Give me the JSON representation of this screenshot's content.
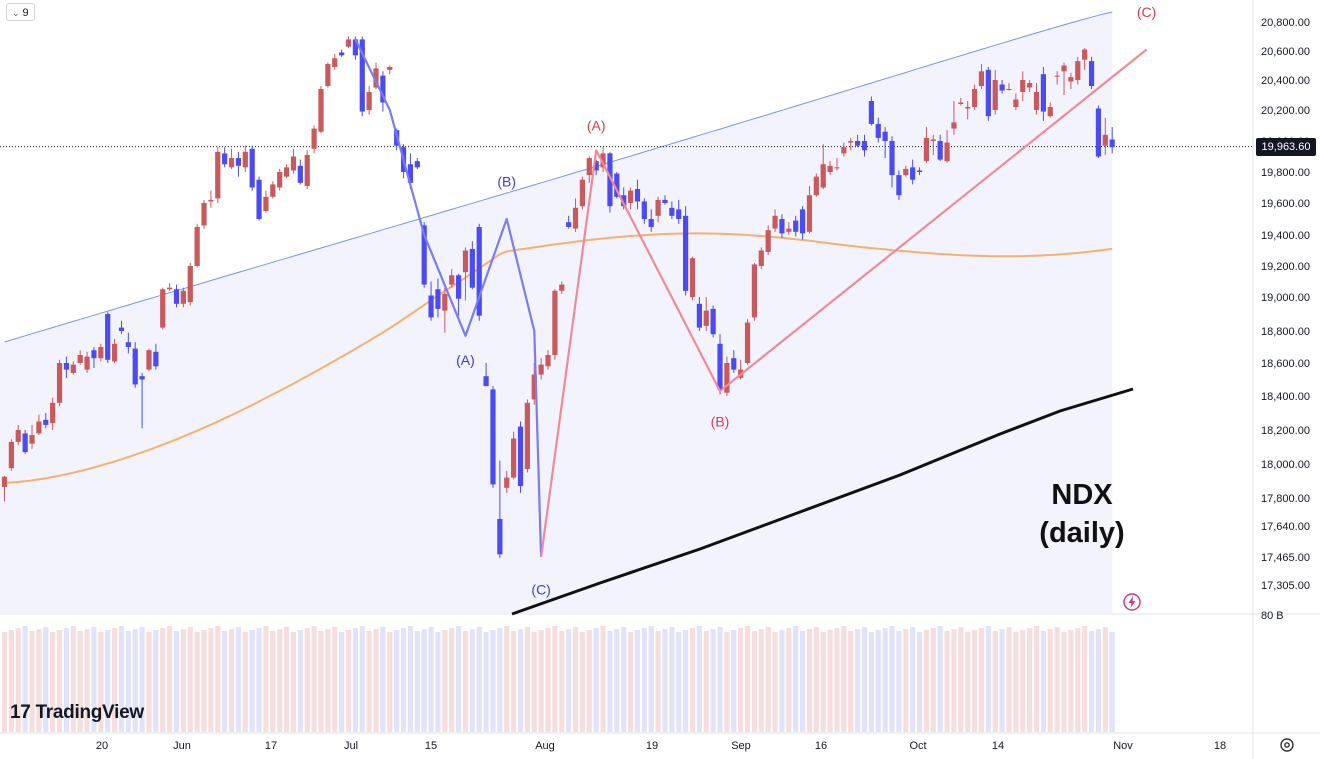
{
  "toolbar": {
    "interval_label": "9"
  },
  "price_tag": "19,963.60",
  "branding": {
    "logo_mark": "17",
    "logo_text": "TradingView"
  },
  "annotation": {
    "title_line1": "NDX",
    "title_line2": "(daily)"
  },
  "axis_extra_label": "80 B",
  "colors": {
    "up": "#c8595c",
    "down": "#4b4bef",
    "wave_blue": "#7b7bf2",
    "wave_red": "#f28a95",
    "ma_orange": "#f6b16e",
    "ma_black": "#111111",
    "band": "#7c93e6"
  },
  "chart_data": {
    "type": "candlestick",
    "title": "NDX (daily)",
    "y_ticks": [
      "20,800.00",
      "20,600.00",
      "20,400.00",
      "20,200.00",
      "20,000.00",
      "19,800.00",
      "19,600.00",
      "19,400.00",
      "19,200.00",
      "19,000.00",
      "18,800.00",
      "18,600.00",
      "18,400.00",
      "18,200.00",
      "18,000.00",
      "17,800.00",
      "17,640.00",
      "17,465.00",
      "17,305.00"
    ],
    "x_ticks": [
      "20",
      "Jun",
      "17",
      "Jul",
      "15",
      "Aug",
      "19",
      "Sep",
      "16",
      "Oct",
      "14",
      "Nov",
      "18"
    ],
    "last_price": 19963.6,
    "ylim": [
      17305,
      20800
    ],
    "candles": [
      [
        17865,
        17925,
        17780,
        17930
      ],
      [
        17975,
        18130,
        17960,
        18145
      ],
      [
        18130,
        18200,
        18110,
        18230
      ],
      [
        18180,
        18070,
        18060,
        18200
      ],
      [
        18120,
        18170,
        18090,
        18230
      ],
      [
        18180,
        18250,
        18170,
        18290
      ],
      [
        18260,
        18230,
        18210,
        18300
      ],
      [
        18240,
        18360,
        18200,
        18390
      ],
      [
        18360,
        18600,
        18340,
        18620
      ],
      [
        18600,
        18560,
        18510,
        18640
      ],
      [
        18540,
        18590,
        18530,
        18610
      ],
      [
        18600,
        18650,
        18590,
        18680
      ],
      [
        18560,
        18640,
        18540,
        18670
      ],
      [
        18680,
        18630,
        18570,
        18700
      ],
      [
        18630,
        18700,
        18610,
        18720
      ],
      [
        18900,
        18620,
        18600,
        18910
      ],
      [
        18610,
        18720,
        18600,
        18750
      ],
      [
        18820,
        18800,
        18780,
        18860
      ],
      [
        18730,
        18700,
        18660,
        18790
      ],
      [
        18690,
        18470,
        18450,
        18730
      ],
      [
        18520,
        18500,
        18210,
        18540
      ],
      [
        18560,
        18680,
        18550,
        18690
      ],
      [
        18670,
        18580,
        18560,
        18720
      ],
      [
        18820,
        19050,
        18810,
        19060
      ],
      [
        19050,
        19060,
        19040,
        19090
      ],
      [
        19050,
        18960,
        18940,
        19080
      ],
      [
        18960,
        19040,
        18940,
        19060
      ],
      [
        18970,
        19200,
        18950,
        19220
      ],
      [
        19200,
        19450,
        19190,
        19470
      ],
      [
        19460,
        19600,
        19440,
        19620
      ],
      [
        19610,
        19620,
        19570,
        19680
      ],
      [
        19630,
        19930,
        19600,
        19960
      ],
      [
        19920,
        19850,
        19830,
        19960
      ],
      [
        19830,
        19890,
        19820,
        19950
      ],
      [
        19890,
        19840,
        19770,
        19930
      ],
      [
        19830,
        19930,
        19800,
        19970
      ],
      [
        19950,
        19700,
        19680,
        19970
      ],
      [
        19750,
        19500,
        19490,
        19770
      ],
      [
        19550,
        19640,
        19540,
        19680
      ],
      [
        19640,
        19720,
        19630,
        19740
      ],
      [
        19700,
        19800,
        19680,
        19820
      ],
      [
        19770,
        19830,
        19760,
        19850
      ],
      [
        19810,
        19900,
        19790,
        19950
      ],
      [
        19840,
        19730,
        19720,
        19880
      ],
      [
        19710,
        19910,
        19690,
        19940
      ],
      [
        19950,
        20080,
        19920,
        20100
      ],
      [
        20060,
        20340,
        20050,
        20360
      ],
      [
        20360,
        20510,
        20350,
        20520
      ],
      [
        20490,
        20550,
        20470,
        20580
      ],
      [
        20590,
        20570,
        20560,
        20610
      ],
      [
        20630,
        20680,
        20620,
        20700
      ],
      [
        20680,
        20570,
        20540,
        20700
      ],
      [
        20680,
        20190,
        20160,
        20700
      ],
      [
        20200,
        20320,
        20170,
        20360
      ],
      [
        20350,
        20480,
        20340,
        20520
      ],
      [
        20430,
        20250,
        20190,
        20460
      ],
      [
        20470,
        20490,
        20440,
        20500
      ],
      [
        20070,
        19970,
        19940,
        20080
      ],
      [
        19960,
        19800,
        19760,
        19980
      ],
      [
        19850,
        19730,
        19690,
        19920
      ],
      [
        19870,
        19830,
        19820,
        19890
      ],
      [
        19460,
        19080,
        19060,
        19480
      ],
      [
        19010,
        18880,
        18860,
        19100
      ],
      [
        19050,
        18930,
        18880,
        19120
      ],
      [
        18920,
        19020,
        18790,
        19060
      ],
      [
        19080,
        19140,
        19060,
        19180
      ],
      [
        19140,
        18990,
        18890,
        19150
      ],
      [
        19160,
        19300,
        18980,
        19320
      ],
      [
        19310,
        19060,
        19050,
        19360
      ],
      [
        19450,
        18890,
        18860,
        19470
      ],
      [
        18520,
        18460,
        18470,
        18600
      ],
      [
        18440,
        17880,
        17860,
        18460
      ],
      [
        17680,
        17480,
        17460,
        18020
      ],
      [
        17860,
        17920,
        17830,
        17960
      ],
      [
        17920,
        18150,
        17910,
        18190
      ],
      [
        18220,
        17870,
        17830,
        18250
      ],
      [
        17970,
        18360,
        17950,
        18380
      ],
      [
        18380,
        18530,
        18350,
        18600
      ],
      [
        18530,
        18590,
        18500,
        18630
      ],
      [
        18580,
        18650,
        18560,
        18680
      ],
      [
        18650,
        19040,
        18620,
        19050
      ],
      [
        19040,
        19080,
        19020,
        19100
      ],
      [
        19480,
        19450,
        19440,
        19520
      ],
      [
        19440,
        19570,
        19420,
        19630
      ],
      [
        19580,
        19750,
        19560,
        19770
      ],
      [
        19780,
        19890,
        19730,
        19900
      ],
      [
        19870,
        19810,
        19780,
        19880
      ],
      [
        19830,
        19920,
        19800,
        19960
      ],
      [
        19920,
        19580,
        19540,
        19930
      ],
      [
        19790,
        19640,
        19630,
        19800
      ],
      [
        19650,
        19580,
        19560,
        19700
      ],
      [
        19600,
        19680,
        19560,
        19700
      ],
      [
        19690,
        19610,
        19560,
        19750
      ],
      [
        19610,
        19500,
        19470,
        19630
      ],
      [
        19500,
        19450,
        19420,
        19560
      ],
      [
        19520,
        19620,
        19480,
        19640
      ],
      [
        19620,
        19600,
        19590,
        19650
      ],
      [
        19570,
        19520,
        19500,
        19610
      ],
      [
        19560,
        19500,
        19470,
        19620
      ],
      [
        19520,
        19040,
        19010,
        19580
      ],
      [
        19000,
        19250,
        18980,
        19260
      ],
      [
        18960,
        18820,
        18800,
        19000
      ],
      [
        18830,
        18920,
        18800,
        19000
      ],
      [
        18930,
        18780,
        18760,
        18950
      ],
      [
        18720,
        18440,
        18410,
        18780
      ],
      [
        18420,
        18600,
        18400,
        18640
      ],
      [
        18630,
        18560,
        18540,
        18680
      ],
      [
        18510,
        18560,
        18500,
        18620
      ],
      [
        18600,
        18850,
        18590,
        18870
      ],
      [
        18880,
        19210,
        18860,
        19220
      ],
      [
        19200,
        19300,
        19180,
        19320
      ],
      [
        19290,
        19430,
        19270,
        19460
      ],
      [
        19440,
        19520,
        19420,
        19560
      ],
      [
        19500,
        19410,
        19380,
        19530
      ],
      [
        19420,
        19440,
        19400,
        19480
      ],
      [
        19490,
        19420,
        19390,
        19520
      ],
      [
        19560,
        19410,
        19370,
        19580
      ],
      [
        19420,
        19650,
        19410,
        19710
      ],
      [
        19650,
        19770,
        19640,
        19790
      ],
      [
        19700,
        19850,
        19690,
        19980
      ],
      [
        19800,
        19840,
        19780,
        19870
      ],
      [
        19830,
        19830,
        19810,
        19890
      ],
      [
        19920,
        19960,
        19900,
        19990
      ],
      [
        19990,
        20000,
        19940,
        20020
      ],
      [
        20000,
        19970,
        19960,
        20040
      ],
      [
        20000,
        19940,
        19900,
        20040
      ],
      [
        20260,
        20110,
        20100,
        20290
      ],
      [
        20110,
        20020,
        19990,
        20150
      ],
      [
        20060,
        20000,
        19890,
        20090
      ],
      [
        20000,
        19780,
        19700,
        20030
      ],
      [
        19780,
        19650,
        19620,
        19810
      ],
      [
        19780,
        19820,
        19770,
        19840
      ],
      [
        19830,
        19750,
        19720,
        19880
      ],
      [
        19810,
        19800,
        19780,
        19830
      ],
      [
        19870,
        20020,
        19860,
        20090
      ],
      [
        20000,
        20010,
        19910,
        20040
      ],
      [
        20000,
        19880,
        19870,
        20040
      ],
      [
        19870,
        19990,
        19860,
        20070
      ],
      [
        20080,
        20120,
        20040,
        20260
      ],
      [
        20240,
        20250,
        20230,
        20280
      ],
      [
        20210,
        20220,
        20140,
        20260
      ],
      [
        20220,
        20340,
        20200,
        20370
      ],
      [
        20360,
        20460,
        20340,
        20510
      ],
      [
        20470,
        20160,
        20130,
        20490
      ],
      [
        20200,
        20400,
        20170,
        20470
      ],
      [
        20370,
        20330,
        20310,
        20400
      ],
      [
        20340,
        20340,
        20330,
        20380
      ],
      [
        20220,
        20270,
        20200,
        20310
      ],
      [
        20320,
        20400,
        20260,
        20460
      ],
      [
        20350,
        20380,
        20320,
        20400
      ],
      [
        20200,
        20320,
        20170,
        20380
      ],
      [
        20440,
        20190,
        20130,
        20490
      ],
      [
        20160,
        20220,
        20150,
        20250
      ],
      [
        20430,
        20430,
        20370,
        20460
      ],
      [
        20460,
        20500,
        20300,
        20520
      ],
      [
        20390,
        20420,
        20340,
        20450
      ],
      [
        20400,
        20530,
        20370,
        20560
      ],
      [
        20540,
        20610,
        20470,
        20620
      ],
      [
        20530,
        20360,
        20340,
        20560
      ],
      [
        20210,
        19900,
        19890,
        20230
      ],
      [
        19970,
        20040,
        19910,
        20150
      ],
      [
        20010,
        19960,
        19920,
        20090
      ]
    ],
    "waves": [
      {
        "name": "blue",
        "points": [
          [
            51,
            20680
          ],
          [
            56,
            20200
          ],
          [
            61,
            19400
          ],
          [
            67,
            18770
          ],
          [
            73,
            19500
          ],
          [
            77,
            18800
          ],
          [
            78,
            17465
          ]
        ]
      },
      {
        "name": "red",
        "points": [
          [
            78,
            17465
          ],
          [
            86,
            19940
          ],
          [
            104,
            18430
          ],
          [
            166,
            20610
          ]
        ]
      }
    ],
    "wave_labels": [
      {
        "text": "(B)",
        "i": 73,
        "price": 19740,
        "color": "blue"
      },
      {
        "text": "(A)",
        "i": 67,
        "price": 18620,
        "color": "blue"
      },
      {
        "text": "(C)",
        "i": 78,
        "price": 17280,
        "color": "blue"
      },
      {
        "text": "(A)",
        "i": 86,
        "price": 20100,
        "color": "red"
      },
      {
        "text": "(B)",
        "i": 104,
        "price": 18250,
        "color": "red"
      },
      {
        "text": "(C)",
        "i": 166,
        "price": 20870,
        "color": "red"
      }
    ]
  }
}
